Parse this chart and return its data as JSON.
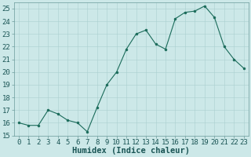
{
  "x": [
    0,
    1,
    2,
    3,
    4,
    5,
    6,
    7,
    8,
    9,
    10,
    11,
    12,
    13,
    14,
    15,
    16,
    17,
    18,
    19,
    20,
    21,
    22,
    23
  ],
  "y": [
    16.0,
    15.8,
    15.8,
    17.0,
    16.7,
    16.2,
    16.0,
    15.3,
    17.2,
    19.0,
    20.0,
    21.8,
    23.0,
    23.3,
    22.2,
    21.8,
    24.2,
    24.7,
    24.8,
    25.2,
    24.3,
    22.0,
    21.0,
    20.3
  ],
  "line_color": "#1a6b5a",
  "marker_color": "#1a6b5a",
  "bg_color": "#cce8e8",
  "grid_color": "#aacfcf",
  "xlabel": "Humidex (Indice chaleur)",
  "ylim": [
    15,
    25.5
  ],
  "yticks": [
    15,
    16,
    17,
    18,
    19,
    20,
    21,
    22,
    23,
    24,
    25
  ],
  "xtick_labels": [
    "0",
    "1",
    "2",
    "3",
    "4",
    "5",
    "6",
    "7",
    "8",
    "9",
    "10",
    "11",
    "12",
    "13",
    "14",
    "15",
    "16",
    "17",
    "18",
    "19",
    "20",
    "21",
    "22",
    "23"
  ],
  "spine_color": "#6a9a9a",
  "label_fontsize": 7.5,
  "tick_fontsize": 6.5
}
